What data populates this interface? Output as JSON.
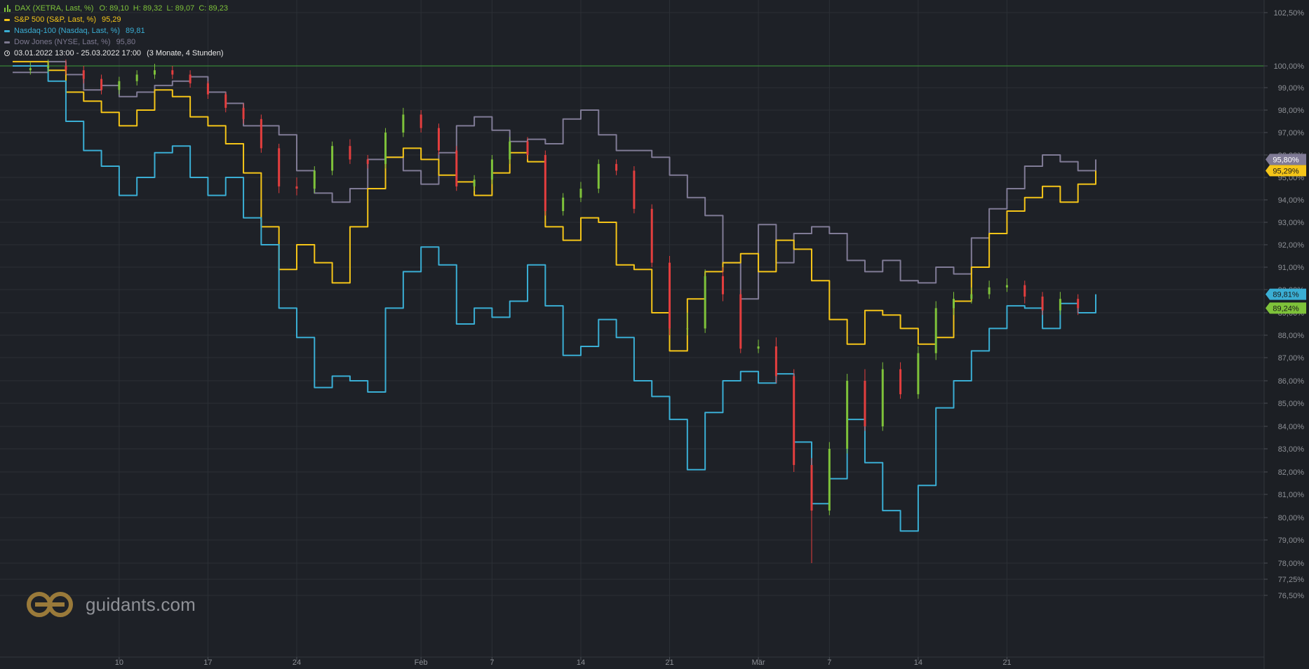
{
  "legend": {
    "dax_label": "DAX (XETRA, Last, %)",
    "dax_ohlc": "O: 89,10  H: 89,32  L: 89,07  C: 89,23",
    "sp500_label": "S&P 500 (S&P, Last, %)",
    "sp500_value": "95,29",
    "nasdaq_label": "Nasdaq-100 (Nasdaq, Last, %)",
    "nasdaq_value": "89,81",
    "dow_label": "Dow Jones (NYSE, Last, %)",
    "dow_value": "95,80",
    "period_range": "03.01.2022 13:00 - 25.03.2022 17:00",
    "period_desc": "(3 Monate, 4 Stunden)"
  },
  "logo": {
    "text": "guidants.com"
  },
  "colors": {
    "background": "#1e2127",
    "grid": "#2c3036",
    "dax": "#7ec23a",
    "dax_down": "#e33e3e",
    "sp500": "#f5c518",
    "nasdaq": "#3aaed4",
    "dow": "#807b96",
    "baseline": "#3f9a3a",
    "axis_text": "#8e9197"
  },
  "chart_data": {
    "type": "line",
    "title": "",
    "ylim": [
      76.0,
      102.8
    ],
    "y_unit": "%",
    "grid": true,
    "legend_position": "top-left",
    "baseline": 100.0,
    "x_tick_labels": [
      {
        "label": "10",
        "x": 6
      },
      {
        "label": "17",
        "x": 11
      },
      {
        "label": "24",
        "x": 16
      },
      {
        "label": "Feb",
        "x": 23
      },
      {
        "label": "7",
        "x": 27
      },
      {
        "label": "14",
        "x": 32
      },
      {
        "label": "21",
        "x": 37
      },
      {
        "label": "Mär",
        "x": 42
      },
      {
        "label": "7",
        "x": 46
      },
      {
        "label": "14",
        "x": 51
      },
      {
        "label": "21",
        "x": 56
      }
    ],
    "y_tick_labels": [
      {
        "label": "102,50%",
        "value": 102.5
      },
      {
        "label": "100,00%",
        "value": 100
      },
      {
        "label": "99,00%",
        "value": 99
      },
      {
        "label": "98,00%",
        "value": 98
      },
      {
        "label": "97,00%",
        "value": 97
      },
      {
        "label": "96,00%",
        "value": 96
      },
      {
        "label": "95,00%",
        "value": 95
      },
      {
        "label": "94,00%",
        "value": 94
      },
      {
        "label": "93,00%",
        "value": 93
      },
      {
        "label": "92,00%",
        "value": 92
      },
      {
        "label": "91,00%",
        "value": 91
      },
      {
        "label": "90,00%",
        "value": 90
      },
      {
        "label": "89,00%",
        "value": 89
      },
      {
        "label": "88,00%",
        "value": 88
      },
      {
        "label": "87,00%",
        "value": 87
      },
      {
        "label": "86,00%",
        "value": 86
      },
      {
        "label": "85,00%",
        "value": 85
      },
      {
        "label": "84,00%",
        "value": 84
      },
      {
        "label": "83,00%",
        "value": 83
      },
      {
        "label": "82,00%",
        "value": 82
      },
      {
        "label": "81,00%",
        "value": 81
      },
      {
        "label": "80,00%",
        "value": 80
      },
      {
        "label": "79,00%",
        "value": 79
      },
      {
        "label": "78,00%",
        "value": 78
      },
      {
        "label": "77,25%",
        "value": 77.25
      },
      {
        "label": "76,50%",
        "value": 76.5
      }
    ],
    "series": [
      {
        "key": "dow",
        "style": "step",
        "color": "#807b96",
        "last_label": "95,80%",
        "x": [
          1,
          2,
          3,
          4,
          5,
          6,
          7,
          8,
          9,
          10,
          11,
          12,
          13,
          14,
          15,
          16,
          17,
          18,
          19,
          20,
          21,
          22,
          23,
          24,
          25,
          26,
          27,
          28,
          29,
          30,
          31,
          32,
          33,
          34,
          35,
          36,
          37,
          38,
          39,
          40,
          41,
          42,
          43,
          44,
          45,
          46,
          47,
          48,
          49,
          50,
          51,
          52,
          53,
          54,
          55,
          56,
          57,
          58,
          59,
          60,
          61
        ],
        "y": [
          99.7,
          100.2,
          99.6,
          98.9,
          99.1,
          98.6,
          98.8,
          99.1,
          99.3,
          99.5,
          98.8,
          98.3,
          97.3,
          97.3,
          96.9,
          95.3,
          94.3,
          93.9,
          94.5,
          95.8,
          95.9,
          95.3,
          94.7,
          96.1,
          97.3,
          97.7,
          97.1,
          96.6,
          96.7,
          96.5,
          97.6,
          98.0,
          96.9,
          96.2,
          96.2,
          95.9,
          95.1,
          94.1,
          93.3,
          91.2,
          89.6,
          92.9,
          91.2,
          92.5,
          92.8,
          92.5,
          91.3,
          90.8,
          91.3,
          90.4,
          90.3,
          91.0,
          90.7,
          92.3,
          93.6,
          94.5,
          95.5,
          96.0,
          95.7,
          95.3,
          95.8
        ]
      },
      {
        "key": "sp500",
        "style": "step",
        "color": "#f5c518",
        "last_label": "95,29%",
        "x": [
          1,
          2,
          3,
          4,
          5,
          6,
          7,
          8,
          9,
          10,
          11,
          12,
          13,
          14,
          15,
          16,
          17,
          18,
          19,
          20,
          21,
          22,
          23,
          24,
          25,
          26,
          27,
          28,
          29,
          30,
          31,
          32,
          33,
          34,
          35,
          36,
          37,
          38,
          39,
          40,
          41,
          42,
          43,
          44,
          45,
          46,
          47,
          48,
          49,
          50,
          51,
          52,
          53,
          54,
          55,
          56,
          57,
          58,
          59,
          60,
          61
        ],
        "y": [
          100.2,
          99.8,
          98.8,
          98.4,
          97.9,
          97.3,
          98.0,
          98.9,
          98.6,
          97.7,
          97.3,
          96.5,
          95.2,
          92.8,
          90.9,
          92.0,
          91.2,
          90.3,
          92.8,
          94.5,
          95.9,
          96.3,
          95.8,
          95.1,
          94.8,
          94.2,
          95.2,
          96.1,
          95.7,
          92.8,
          92.2,
          93.2,
          93.0,
          91.1,
          90.9,
          89.0,
          87.3,
          89.6,
          90.8,
          91.2,
          91.6,
          90.8,
          92.2,
          91.8,
          90.4,
          88.7,
          87.6,
          89.1,
          88.9,
          88.3,
          87.6,
          87.9,
          89.5,
          91.0,
          92.5,
          93.5,
          94.1,
          94.6,
          93.9,
          94.7,
          95.3
        ]
      },
      {
        "key": "nasdaq",
        "style": "step",
        "color": "#3aaed4",
        "last_label": "89,81%",
        "x": [
          1,
          2,
          3,
          4,
          5,
          6,
          7,
          8,
          9,
          10,
          11,
          12,
          13,
          14,
          15,
          16,
          17,
          18,
          19,
          20,
          21,
          22,
          23,
          24,
          25,
          26,
          27,
          28,
          29,
          30,
          31,
          32,
          33,
          34,
          35,
          36,
          37,
          38,
          39,
          40,
          41,
          42,
          43,
          44,
          45,
          46,
          47,
          48,
          49,
          50,
          51,
          52,
          53,
          54,
          55,
          56,
          57,
          58,
          59,
          60,
          61
        ],
        "y": [
          100.0,
          99.3,
          97.5,
          96.2,
          95.5,
          94.2,
          95.0,
          96.1,
          96.4,
          95.0,
          94.2,
          95.0,
          93.2,
          92.0,
          89.2,
          87.9,
          85.7,
          86.2,
          86.0,
          85.5,
          89.2,
          90.8,
          91.9,
          91.1,
          88.5,
          89.2,
          88.8,
          89.5,
          91.1,
          89.3,
          87.1,
          87.5,
          88.7,
          87.9,
          86.0,
          85.3,
          84.3,
          82.1,
          84.6,
          86.0,
          86.4,
          85.9,
          86.3,
          83.3,
          80.6,
          81.7,
          84.3,
          82.4,
          80.3,
          79.4,
          81.4,
          84.8,
          86.0,
          87.3,
          88.3,
          89.3,
          89.2,
          88.3,
          89.4,
          89.0,
          89.8
        ]
      },
      {
        "key": "dax",
        "style": "candles",
        "color_up": "#7ec23a",
        "color_down": "#e33e3e",
        "last_label": "89,24%",
        "x": [
          1,
          2,
          3,
          4,
          5,
          6,
          7,
          8,
          9,
          10,
          11,
          12,
          13,
          14,
          15,
          16,
          17,
          18,
          19,
          20,
          21,
          22,
          23,
          24,
          25,
          26,
          27,
          28,
          29,
          30,
          31,
          32,
          33,
          34,
          35,
          36,
          37,
          38,
          39,
          40,
          41,
          42,
          43,
          44,
          45,
          46,
          47,
          48,
          49,
          50,
          51,
          52,
          53,
          54,
          55,
          56,
          57,
          58,
          59,
          60
        ],
        "open": [
          99.8,
          99.9,
          100.0,
          99.8,
          99.4,
          98.9,
          99.3,
          99.6,
          99.8,
          99.6,
          99.2,
          98.7,
          98.1,
          97.6,
          96.3,
          94.6,
          94.5,
          95.3,
          96.4,
          95.8,
          95.6,
          97.0,
          97.8,
          97.2,
          96.2,
          94.6,
          94.9,
          95.8,
          96.6,
          96.0,
          93.5,
          94.1,
          94.5,
          95.6,
          95.3,
          93.6,
          91.2,
          88.3,
          88.3,
          90.6,
          89.8,
          87.4,
          87.5,
          86.2,
          82.3,
          80.3,
          83.0,
          86.0,
          84.0,
          86.5,
          85.4,
          87.2,
          89.2,
          89.6,
          89.8,
          90.1,
          90.2,
          89.7,
          89.1,
          89.6
        ],
        "close": [
          99.9,
          100.0,
          99.8,
          99.4,
          98.9,
          99.3,
          99.6,
          99.8,
          99.6,
          99.2,
          98.7,
          98.1,
          97.6,
          96.3,
          94.6,
          94.5,
          95.3,
          96.4,
          95.8,
          95.6,
          97.0,
          97.8,
          97.2,
          96.2,
          94.6,
          94.9,
          95.8,
          96.6,
          96.0,
          93.5,
          94.1,
          94.5,
          95.6,
          95.3,
          93.6,
          91.2,
          88.3,
          88.3,
          90.6,
          89.8,
          87.4,
          87.5,
          86.2,
          82.3,
          80.3,
          83.0,
          86.0,
          84.0,
          86.5,
          85.4,
          87.2,
          89.2,
          89.6,
          89.8,
          90.1,
          90.2,
          89.7,
          89.1,
          89.6,
          89.2
        ],
        "high": [
          100.2,
          100.3,
          100.3,
          100.0,
          99.6,
          99.5,
          99.8,
          100.1,
          100.0,
          99.8,
          99.3,
          98.8,
          98.3,
          97.8,
          96.5,
          95.0,
          95.5,
          96.6,
          96.7,
          96.0,
          97.2,
          98.1,
          98.0,
          97.4,
          96.4,
          95.1,
          96.0,
          96.8,
          96.8,
          96.2,
          94.3,
          94.8,
          95.8,
          95.8,
          95.5,
          93.8,
          91.5,
          89.0,
          90.9,
          91.0,
          90.0,
          87.8,
          87.9,
          86.5,
          82.6,
          83.3,
          86.3,
          86.5,
          86.8,
          86.8,
          87.5,
          89.5,
          89.9,
          90.1,
          90.4,
          90.5,
          90.4,
          89.9,
          89.9,
          89.8
        ],
        "low": [
          99.6,
          99.7,
          99.6,
          99.2,
          98.7,
          98.7,
          99.1,
          99.4,
          99.4,
          99.0,
          98.5,
          97.9,
          97.4,
          96.1,
          94.3,
          94.2,
          94.3,
          95.1,
          95.6,
          95.4,
          95.4,
          96.8,
          97.0,
          96.0,
          94.4,
          94.4,
          94.7,
          95.6,
          95.8,
          93.3,
          93.3,
          93.9,
          94.3,
          95.1,
          93.4,
          91.0,
          88.0,
          88.0,
          88.1,
          89.5,
          87.2,
          87.2,
          85.9,
          82.0,
          78.0,
          80.1,
          82.8,
          83.8,
          83.8,
          85.2,
          85.2,
          86.9,
          88.9,
          89.4,
          89.6,
          89.9,
          89.4,
          88.9,
          88.9,
          88.9
        ]
      }
    ]
  }
}
